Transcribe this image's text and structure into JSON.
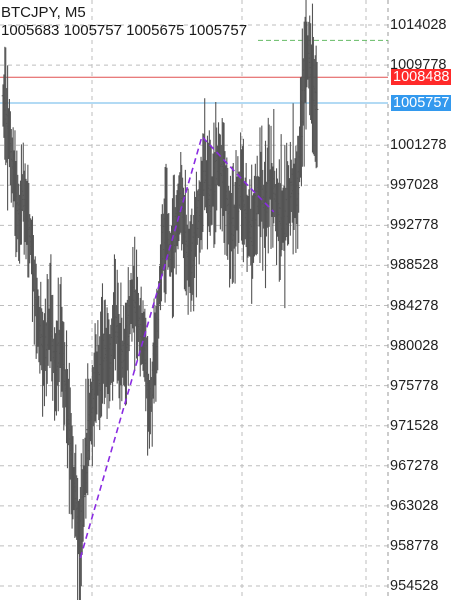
{
  "header": {
    "symbol_timeframe": "BTCJPY, M5",
    "ohlc": "1005683 1005757 1005675 1005757"
  },
  "colors": {
    "bid_line": "#e05050",
    "bid_tag": "#ff2a2a",
    "ask_line": "#66b6e8",
    "ask_tag": "#3399ee",
    "high_line": "#66bb66",
    "candles": "#555555",
    "trendline": "#8a2be2",
    "grid": "#bdbdbd"
  },
  "chart_data": {
    "type": "line",
    "symbol": "BTCJPY",
    "timeframe": "M5",
    "y_ticks": [
      "1014028",
      "1009778",
      "1001278",
      "997028",
      "992778",
      "988528",
      "984278",
      "980028",
      "975778",
      "971528",
      "967278",
      "963028",
      "958778",
      "954528"
    ],
    "ylim": [
      954528,
      1014028
    ],
    "bid_price": "1008488",
    "ask_price": "1005757",
    "recent_high": 1012400,
    "price_series": [
      1006000,
      1004500,
      1002500,
      1000500,
      998000,
      995000,
      993500,
      996000,
      994500,
      993000,
      991000,
      988000,
      984000,
      982000,
      980500,
      978500,
      981000,
      983000,
      979500,
      977500,
      979000,
      981000,
      977000,
      974500,
      971000,
      967500,
      964500,
      961500,
      958800,
      963000,
      967500,
      971000,
      973500,
      975500,
      977500,
      976000,
      978500,
      980000,
      977500,
      979500,
      981500,
      982500,
      980500,
      978500,
      979500,
      981000,
      983500,
      985500,
      984000,
      982500,
      981500,
      980000,
      976500,
      973500,
      975500,
      979500,
      983500,
      987500,
      991000,
      993000,
      990000,
      989500,
      991500,
      993500,
      995500,
      994000,
      991500,
      989500,
      988500,
      990500,
      992500,
      994500,
      996500,
      998500,
      997000,
      995000,
      996500,
      998500,
      1000000,
      998500,
      997500,
      995500,
      993000,
      992000,
      993500,
      995000,
      997000,
      995500,
      993500,
      992500,
      991500,
      993500,
      995500,
      996500,
      995500,
      994000,
      996000,
      997500,
      996500,
      995000,
      994000,
      993000,
      992500,
      995500,
      996500,
      997000,
      995500,
      997500,
      1003000,
      1008000,
      1012400,
      1009500,
      1007000,
      1006000,
      1005757
    ],
    "trendline_points": [
      {
        "t": 28,
        "v": 957500
      },
      {
        "t": 72,
        "v": 1002200
      },
      {
        "t": 88,
        "v": 997200
      },
      {
        "t": 98,
        "v": 994200
      }
    ]
  }
}
